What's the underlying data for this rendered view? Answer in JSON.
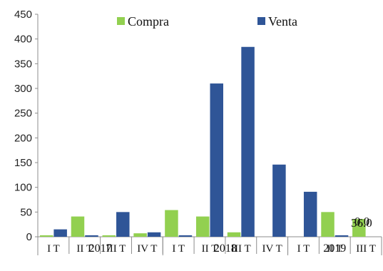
{
  "chart_data": {
    "type": "bar",
    "categories": [
      "I T",
      "II T",
      "III T",
      "IV T",
      "I T",
      "II T",
      "III T",
      "IV T",
      "I T",
      "II T",
      "III T"
    ],
    "groups": [
      {
        "label": "2017",
        "count": 4
      },
      {
        "label": "2018",
        "count": 4
      },
      {
        "label": "2019",
        "count": 3
      }
    ],
    "series": [
      {
        "name": "Compra",
        "color": "#92d050",
        "values": [
          3,
          41,
          3,
          7,
          54,
          41,
          9,
          0,
          0,
          50,
          36
        ]
      },
      {
        "name": "Venta",
        "color": "#2f5597",
        "values": [
          15,
          3,
          50,
          9,
          3,
          310,
          384,
          146,
          91,
          3,
          0
        ]
      }
    ],
    "data_labels": {
      "compra_last": "36.0",
      "venta_last": "0.0"
    },
    "ylim": [
      0,
      450
    ],
    "yticks": [
      0,
      50,
      100,
      150,
      200,
      250,
      300,
      350,
      400,
      450
    ],
    "legend_position": "top",
    "grid": false
  }
}
